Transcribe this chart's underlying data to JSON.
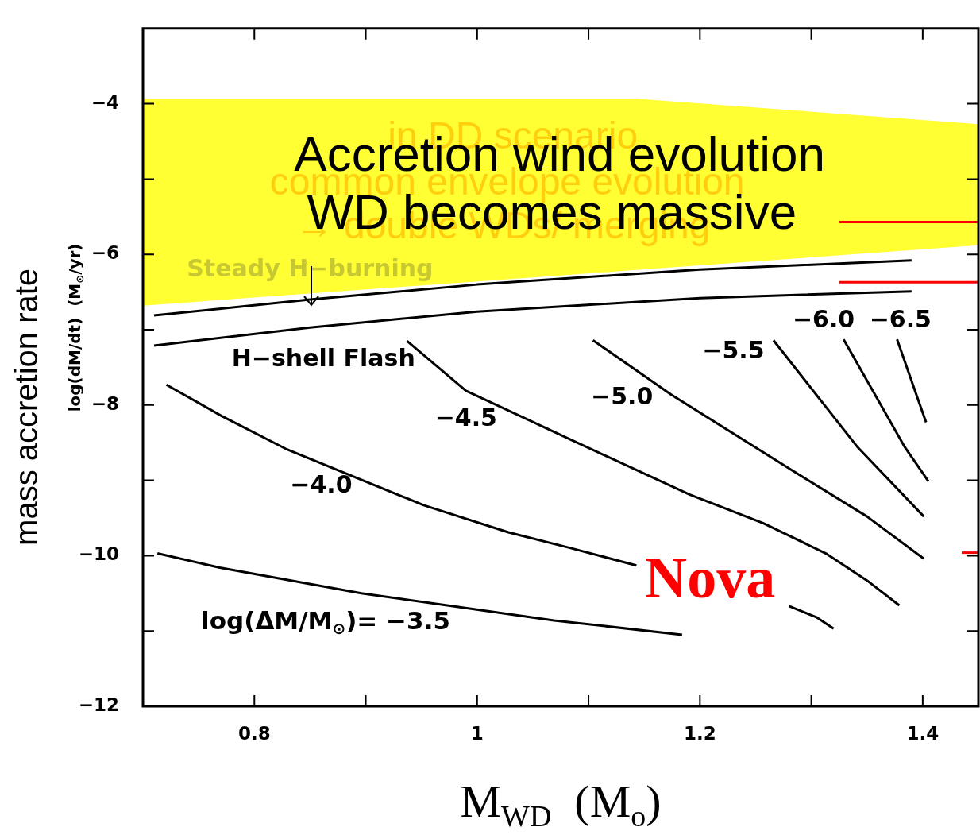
{
  "chart_data": {
    "type": "line",
    "xlabel": "M$_{WD}$  (M$_{o}$)",
    "ylabel": "log(dM/dt)  (M$_{⊙}$/yr)",
    "marker": "none",
    "line_style": "solid",
    "xlim": [
      0.7,
      1.45
    ],
    "ylim": [
      -12,
      -3
    ],
    "xticks": [
      0.8,
      {
        "value": 0.9,
        "label": null
      },
      1,
      {
        "value": 1.1,
        "label": null
      },
      1.2,
      {
        "value": 1.3,
        "label": null
      },
      1.4
    ],
    "yticks": [
      -12,
      {
        "value": -11,
        "label": null
      },
      -10,
      {
        "value": -9,
        "label": null
      },
      -8,
      {
        "value": -7,
        "label": null
      },
      -6,
      {
        "value": -5,
        "label": null
      },
      -4
    ],
    "series": [
      {
        "type": "line",
        "color": "#ffff33",
        "x": [
          0.7,
          1.14,
          1.45
        ],
        "values": [
          null,
          null,
          null
        ],
        "upper": [
          -3.93,
          -3.93,
          -4.27
        ],
        "lower": [
          -6.68,
          -6.21,
          -5.88
        ]
      },
      {
        "color": "#000000",
        "x": [
          0.71,
          0.85,
          1.0,
          1.2,
          1.39
        ],
        "values": [
          -6.81,
          -6.6,
          -6.4,
          -6.2,
          -6.08
        ]
      },
      {
        "color": "#000000",
        "x": [
          0.71,
          0.85,
          1.0,
          1.2,
          1.39
        ],
        "values": [
          -7.21,
          -6.97,
          -6.76,
          -6.58,
          -6.49
        ]
      },
      {
        "color": "#000000",
        "x": [
          0.713,
          0.769,
          0.896,
          1.026,
          1.069,
          1.184
        ],
        "values": [
          -9.97,
          -10.16,
          -10.5,
          -10.77,
          -10.86,
          -11.05
        ]
      },
      {
        "color": "#000000",
        "x": [
          0.721,
          0.77,
          0.828,
          0.952,
          1.028,
          1.084,
          1.143,
          1.21,
          1.28,
          1.305,
          1.32
        ],
        "values": [
          -7.73,
          -8.14,
          -8.58,
          -9.33,
          -9.69,
          -9.9,
          -10.13,
          null,
          -10.67,
          -10.82,
          -10.97
        ]
      },
      {
        "color": "#000000",
        "x": [
          0.937,
          0.99,
          1.084,
          1.191,
          1.257,
          1.313,
          1.35,
          1.379
        ],
        "values": [
          -7.15,
          -7.81,
          -8.46,
          -9.19,
          -9.57,
          -9.97,
          -10.33,
          -10.66
        ]
      },
      {
        "color": "#000000",
        "x": [
          1.104,
          1.174,
          1.283,
          1.35,
          1.401
        ],
        "values": [
          -7.14,
          -7.86,
          -8.87,
          -9.48,
          -10.04
        ]
      },
      {
        "color": "#000000",
        "x": [
          1.266,
          1.341,
          1.401
        ],
        "values": [
          -7.14,
          -8.55,
          -9.48
        ]
      },
      {
        "color": "#000000",
        "x": [
          1.329,
          1.384,
          1.405
        ],
        "values": [
          -7.13,
          -8.56,
          -9.01
        ]
      },
      {
        "color": "#000000",
        "x": [
          1.377,
          1.403
        ],
        "values": [
          -7.13,
          -8.23
        ]
      },
      {
        "color": "#ff0000",
        "x": [
          1.325,
          1.45
        ],
        "values": [
          -5.57,
          -5.57
        ]
      },
      {
        "color": "#ff0000",
        "x": [
          1.325,
          1.45
        ],
        "values": [
          -6.37,
          -6.37
        ]
      },
      {
        "color": "#ff0000",
        "x": [
          1.435,
          1.45
        ],
        "values": [
          -9.96,
          -9.96
        ]
      }
    ],
    "annotations": [
      "in DD scenario",
      "common envelope evolution",
      "→ double WDs/ merging",
      "Accretion wind evolution",
      "WD becomes massive",
      "Steady H−burning",
      "H−shell Flash",
      "−4.5",
      "−4.0",
      "−5.0",
      "−5.5",
      "−6.0",
      "−6.5",
      "log(ΔM/M$_{⊙}$)= −3.5",
      "Nova",
      "mass accretion rate"
    ]
  }
}
